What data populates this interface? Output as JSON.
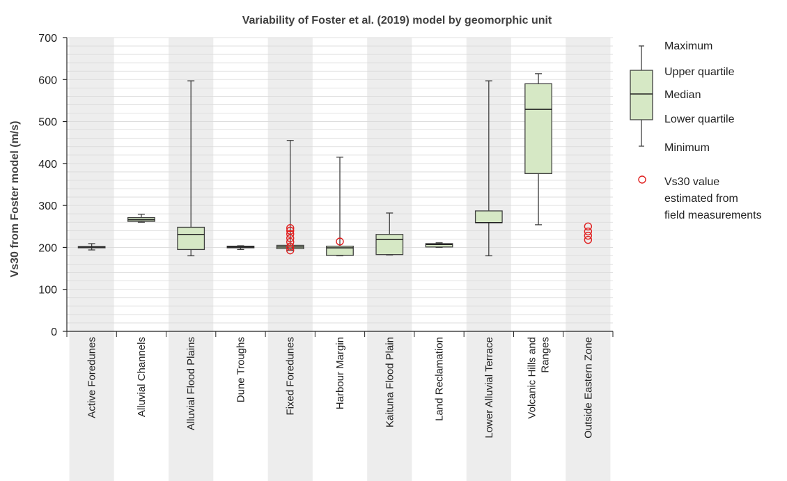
{
  "chart_data": {
    "type": "box",
    "title": "Variability of Foster et al. (2019) model by geomorphic unit",
    "ylabel": "Vs30 from Foster model (m/s)",
    "xlabel": "",
    "ylim": [
      0,
      700
    ],
    "yticks": [
      0,
      100,
      200,
      300,
      400,
      500,
      600,
      700
    ],
    "grid": true,
    "legend_position": "right",
    "colors": {
      "box_fill": "#d6e8c5",
      "box_stroke": "#404040",
      "point": "#e02020",
      "band": "#ededed"
    },
    "categories": [
      {
        "label": [
          "Active Foredunes"
        ],
        "box": {
          "min": 194,
          "q1": 199,
          "median": 201,
          "q3": 202,
          "max": 209
        },
        "points": []
      },
      {
        "label": [
          "Alluvial Channels"
        ],
        "box": {
          "min": 260,
          "q1": 262,
          "median": 266,
          "q3": 271,
          "max": 279
        },
        "points": []
      },
      {
        "label": [
          "Alluvial Flood Plains"
        ],
        "box": {
          "min": 180,
          "q1": 195,
          "median": 231,
          "q3": 248,
          "max": 597
        },
        "points": []
      },
      {
        "label": [
          "Dune Troughs"
        ],
        "box": {
          "min": 195,
          "q1": 199,
          "median": 201,
          "q3": 203,
          "max": 204
        },
        "points": []
      },
      {
        "label": [
          "Fixed Foredunes"
        ],
        "box": {
          "min": 193,
          "q1": 197,
          "median": 201,
          "q3": 205,
          "max": 455
        },
        "points": [
          193,
          202,
          213,
          222,
          232,
          240,
          246
        ]
      },
      {
        "label": [
          "Harbour Margin"
        ],
        "box": {
          "min": 180,
          "q1": 181,
          "median": 199,
          "q3": 203,
          "max": 415
        },
        "points": [
          214
        ]
      },
      {
        "label": [
          "Kaituna Flood Plain"
        ],
        "box": {
          "min": 182,
          "q1": 183,
          "median": 219,
          "q3": 231,
          "max": 282
        },
        "points": []
      },
      {
        "label": [
          "Land Reclamation"
        ],
        "box": {
          "min": 200,
          "q1": 201,
          "median": 207,
          "q3": 209,
          "max": 211
        },
        "points": []
      },
      {
        "label": [
          "Lower Alluvial Terrace"
        ],
        "box": {
          "min": 180,
          "q1": 259,
          "median": 259,
          "q3": 287,
          "max": 597
        },
        "points": []
      },
      {
        "label": [
          "Volcanic Hills and",
          "Ranges"
        ],
        "box": {
          "min": 254,
          "q1": 376,
          "median": 529,
          "q3": 590,
          "max": 614
        },
        "points": []
      },
      {
        "label": [
          "Outside Eastern Zone"
        ],
        "box": null,
        "points": [
          218,
          228,
          238,
          250
        ]
      }
    ],
    "legend": {
      "maximum": "Maximum",
      "upper_quartile": "Upper quartile",
      "median": "Median",
      "lower_quartile": "Lower quartile",
      "minimum": "Minimum",
      "points_lines": [
        "Vs30 value",
        "estimated from",
        "field measurements"
      ]
    }
  }
}
